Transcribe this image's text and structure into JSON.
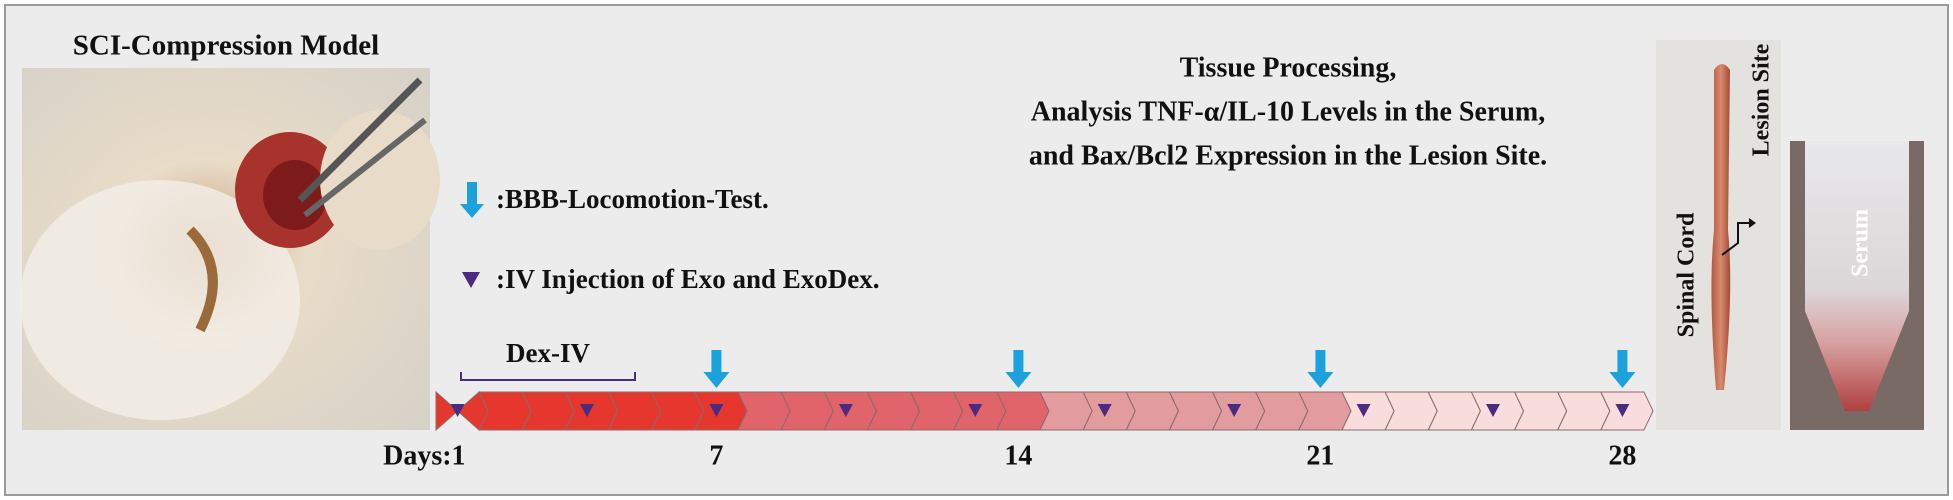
{
  "title": "SCI-Compression Model",
  "legend": {
    "arrow": ":BBB-Locomotion-Test.",
    "injection": ":IV Injection of Exo and ExoDex."
  },
  "tissue": {
    "lines": [
      "Tissue Processing,",
      "Analysis TNF-α/IL-10 Levels in the Serum,",
      "and Bax/Bcl2 Expression in the Lesion Site."
    ]
  },
  "timeline": {
    "bracket": "Dex-IV",
    "days": [
      "Days:1",
      "7",
      "14",
      "21",
      "28"
    ]
  },
  "photos": {
    "spinal_cord": "Spinal Cord",
    "lesion_site": "Lesion Site",
    "serum": "Serum"
  }
}
